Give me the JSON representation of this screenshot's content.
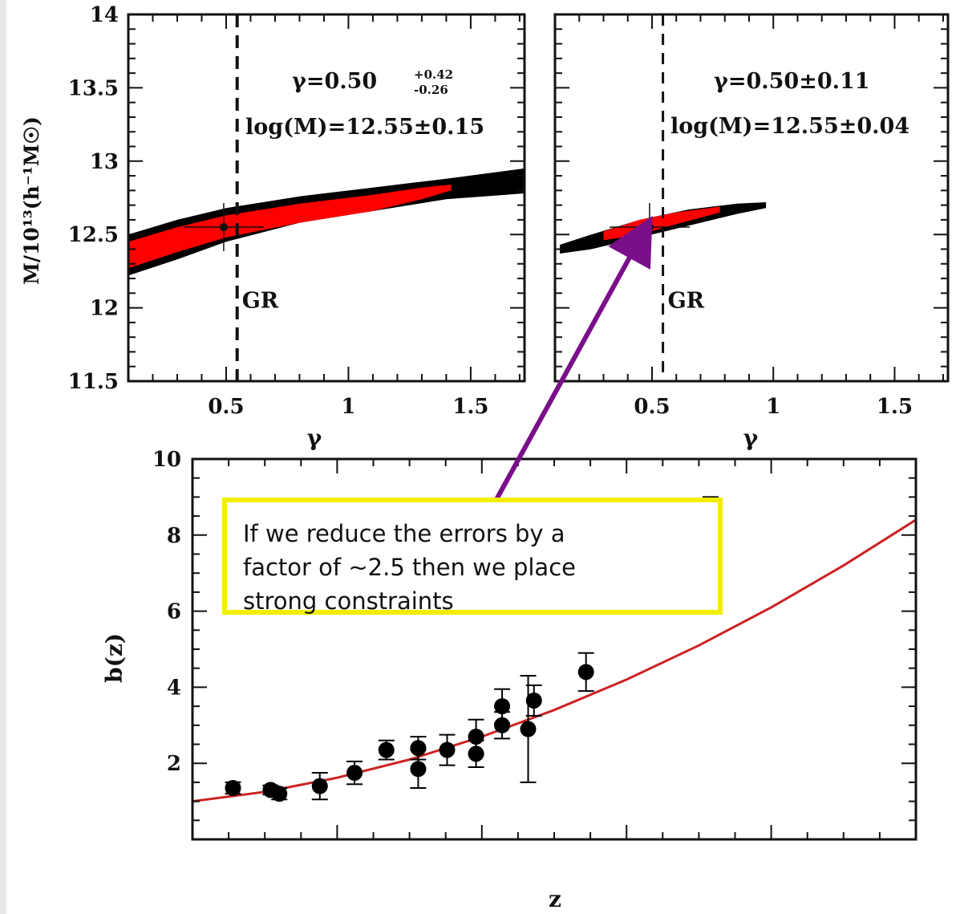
{
  "chart_data": [
    {
      "type": "contour",
      "panel": "top-left",
      "xlabel": "γ",
      "ylabel": "M/10¹³(h⁻¹M☉)",
      "xlim": [
        0.1,
        1.72
      ],
      "ylim": [
        11.5,
        14
      ],
      "x_ticks": [
        "0.5",
        "1",
        "1.5"
      ],
      "x_tick_values": [
        0.5,
        1,
        1.5
      ],
      "y_ticks": [
        "11.5",
        "12",
        "12.5",
        "13",
        "13.5",
        "14"
      ],
      "y_tick_values": [
        11.5,
        12,
        12.5,
        13,
        13.5,
        14
      ],
      "gr_value": 0.545,
      "gr_label": "GR",
      "best_fit": {
        "x": 0.49,
        "y": 12.55
      },
      "annotation_line1_main": "γ=0.50",
      "annotation_line1_sup": "+0.42",
      "annotation_line1_sub": "-0.26",
      "annotation_line2": "log(M)=12.55±0.15",
      "outer_region_color": "#000000",
      "inner_region_color": "#ff0000"
    },
    {
      "type": "contour",
      "panel": "top-right",
      "xlabel": "γ",
      "ylabel": "",
      "xlim": [
        0.1,
        1.72
      ],
      "ylim": [
        11.5,
        14
      ],
      "x_ticks": [
        "0.5",
        "1",
        "1.5"
      ],
      "x_tick_values": [
        0.5,
        1,
        1.5
      ],
      "gr_value": 0.545,
      "gr_label": "GR",
      "best_fit": {
        "x": 0.49,
        "y": 12.55
      },
      "annotation_line1": "γ=0.50±0.11",
      "annotation_line2": "log(M)=12.55±0.04",
      "outer_region_color": "#000000",
      "inner_region_color": "#ff0000"
    },
    {
      "type": "scatter",
      "panel": "bottom",
      "xlabel": "z",
      "ylabel": "b(z)",
      "xlim": [
        0.0,
        2.5
      ],
      "ylim": [
        0,
        10
      ],
      "y_ticks": [
        "2",
        "4",
        "6",
        "8",
        "10"
      ],
      "y_tick_values": [
        2,
        4,
        6,
        8,
        10
      ],
      "series": [
        {
          "points": [
            {
              "x": 0.14,
              "y": 1.35,
              "err": 0.15
            },
            {
              "x": 0.27,
              "y": 1.3,
              "err": 0.12
            },
            {
              "x": 0.3,
              "y": 1.2,
              "err": 0.15
            },
            {
              "x": 0.44,
              "y": 1.4,
              "err": 0.35
            },
            {
              "x": 0.56,
              "y": 1.75,
              "err": 0.3
            },
            {
              "x": 0.67,
              "y": 2.35,
              "err": 0.25
            },
            {
              "x": 0.78,
              "y": 1.85,
              "err": 0.5
            },
            {
              "x": 0.78,
              "y": 2.4,
              "err": 0.3
            },
            {
              "x": 0.88,
              "y": 2.35,
              "err": 0.4
            },
            {
              "x": 0.98,
              "y": 2.25,
              "err": 0.35
            },
            {
              "x": 0.98,
              "y": 2.7,
              "err": 0.45
            },
            {
              "x": 1.07,
              "y": 3.0,
              "err": 0.35
            },
            {
              "x": 1.07,
              "y": 3.5,
              "err": 0.45
            },
            {
              "x": 1.16,
              "y": 2.9,
              "err": 1.4
            },
            {
              "x": 1.18,
              "y": 3.65,
              "err": 0.4
            },
            {
              "x": 1.36,
              "y": 4.4,
              "err": 0.5
            },
            {
              "x": 1.79,
              "y": 7.55,
              "err": 1.45
            }
          ],
          "color": "#000000"
        }
      ],
      "model_curve": {
        "color": "#cc2222",
        "x": [
          0.0,
          0.25,
          0.5,
          0.75,
          1.0,
          1.25,
          1.5,
          1.75,
          2.0,
          2.25,
          2.5
        ],
        "y": [
          1.0,
          1.25,
          1.62,
          2.1,
          2.7,
          3.4,
          4.2,
          5.1,
          6.1,
          7.2,
          8.4
        ]
      }
    }
  ],
  "callout": {
    "text_line1": "If we reduce the errors by a",
    "text_line2": "factor of ~2.5 then we place",
    "text_line3": "strong constraints",
    "border_color": "#f2ee00",
    "arrow_color": "#7a0f8a"
  }
}
